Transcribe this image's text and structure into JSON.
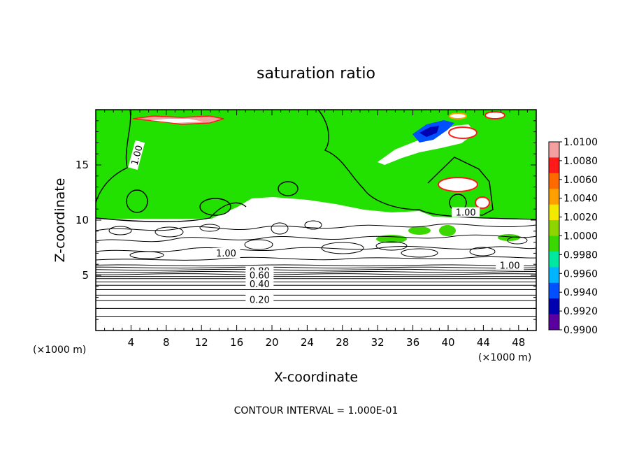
{
  "chart_data": {
    "type": "heatmap",
    "title": "saturation ratio",
    "xlabel": "X-coordinate",
    "ylabel": "Z-coordinate",
    "x_unit_left": "(×1000 m)",
    "x_unit_right": "(×1000 m)",
    "footer": "CONTOUR INTERVAL = 1.000E-01",
    "xlim": [
      0,
      50
    ],
    "ylim": [
      0,
      20
    ],
    "x_ticks": [
      4,
      8,
      12,
      16,
      20,
      24,
      28,
      32,
      36,
      40,
      44,
      48
    ],
    "y_ticks": [
      5,
      10,
      15
    ],
    "contour_labels": [
      {
        "text": "1.00",
        "x": 5,
        "y": 16
      },
      {
        "text": "1.00",
        "x": 42,
        "y": 10.6
      },
      {
        "text": "1.00",
        "x": 14.8,
        "y": 6.9
      },
      {
        "text": "1.00",
        "x": 47,
        "y": 5.8
      },
      {
        "text": "0.80",
        "x": 18.6,
        "y": 5.3
      },
      {
        "text": "0.60",
        "x": 18.6,
        "y": 4.9
      },
      {
        "text": "0.40",
        "x": 18.6,
        "y": 4.1
      },
      {
        "text": "0.20",
        "x": 18.6,
        "y": 2.7
      }
    ],
    "colorbar": {
      "min": 0.99,
      "max": 1.01,
      "labels": [
        "1.0100",
        "1.0080",
        "1.0060",
        "1.0040",
        "1.0020",
        "1.0000",
        "0.9980",
        "0.9960",
        "0.9940",
        "0.9920",
        "0.9900"
      ],
      "colors": [
        "#f4a0a0",
        "#ff1a1a",
        "#ff6a00",
        "#ffa000",
        "#f2e800",
        "#8ed400",
        "#3ad800",
        "#00e8a0",
        "#00b4ff",
        "#0050ff",
        "#0000b0",
        "#5a00a0"
      ]
    },
    "field_color": "#22e000"
  }
}
